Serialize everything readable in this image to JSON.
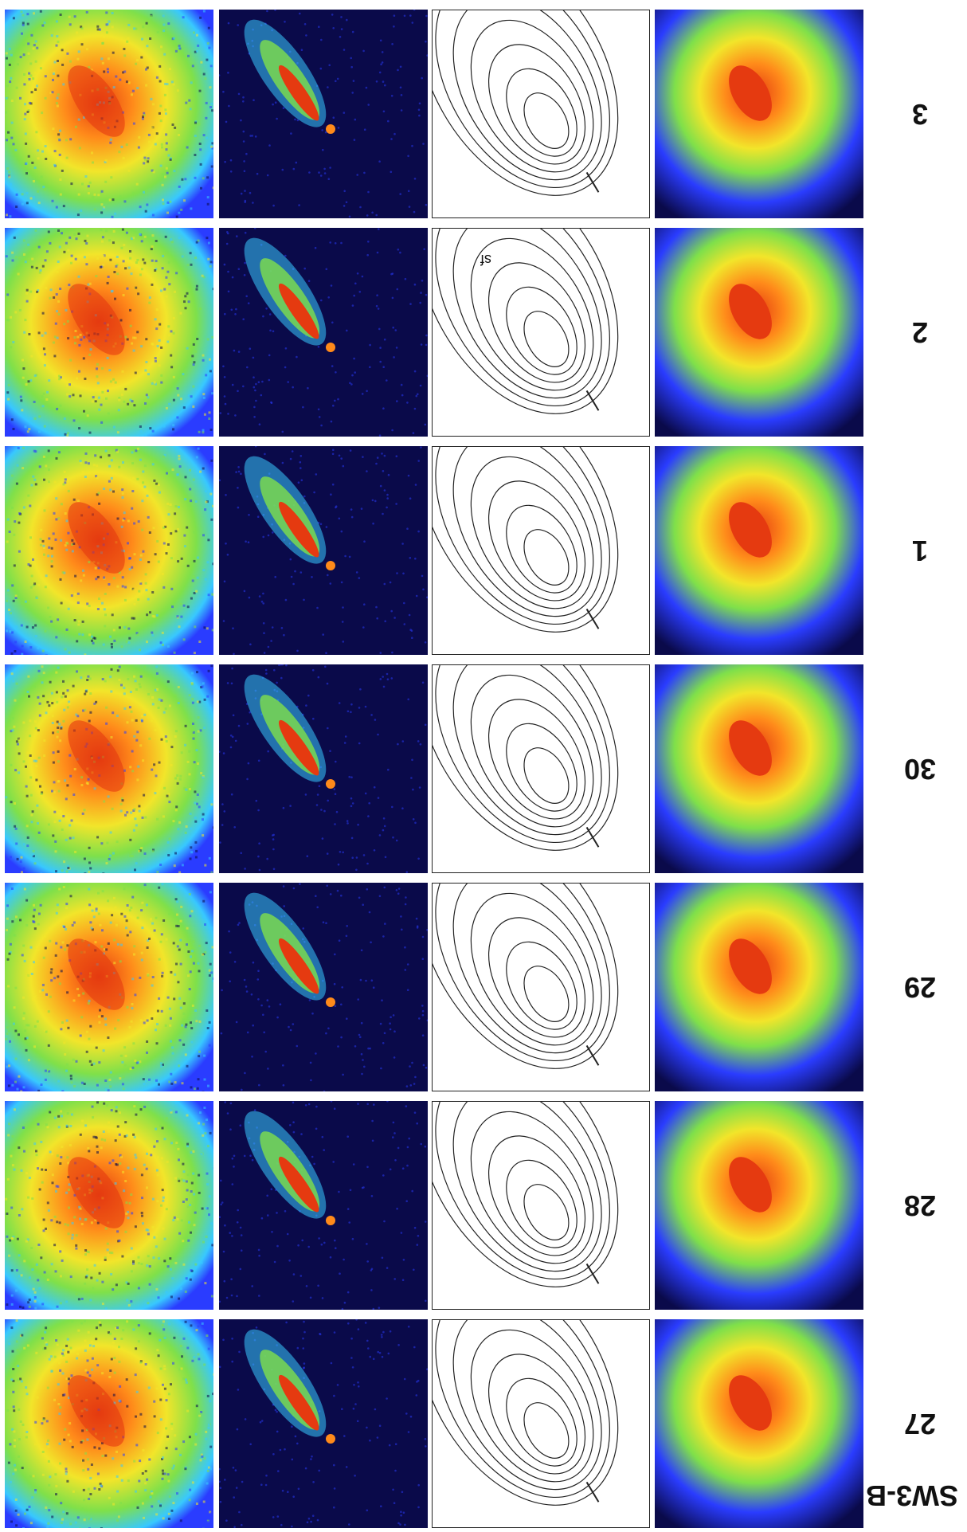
{
  "figure": {
    "title": "SW3-B",
    "rows": [
      {
        "label": "3"
      },
      {
        "label": "2",
        "annotation": "sf"
      },
      {
        "label": "1"
      },
      {
        "label": "30"
      },
      {
        "label": "29"
      },
      {
        "label": "28"
      },
      {
        "label": "27"
      }
    ]
  },
  "colors": {
    "dark_blue": "#0a0a4a",
    "blue": "#2a3cff",
    "cyan": "#38c8ff",
    "green": "#7fe04a",
    "yellow": "#f2e52a",
    "orange": "#ff8a1a",
    "red": "#e53a10"
  }
}
